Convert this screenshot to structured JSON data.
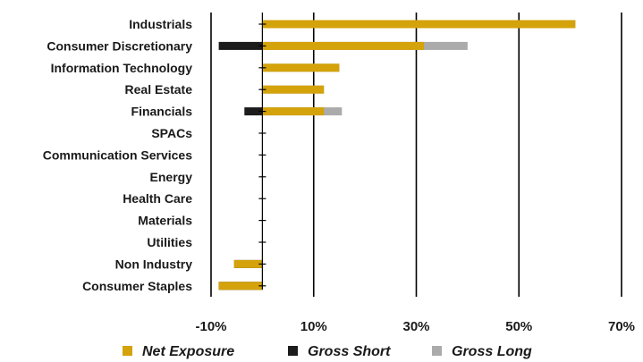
{
  "chart_data": {
    "type": "bar",
    "orientation": "horizontal",
    "title": "",
    "xlabel": "",
    "ylabel": "",
    "xlim": [
      -10,
      70
    ],
    "x_ticks": [
      "-10%",
      "10%",
      "30%",
      "50%",
      "70%"
    ],
    "x_tick_values": [
      -10,
      10,
      30,
      50,
      70
    ],
    "gridlines": "vertical",
    "legend_position": "bottom",
    "categories": [
      "Industrials",
      "Consumer Discretionary",
      "Information Technology",
      "Real Estate",
      "Financials",
      "SPACs",
      "Communication Services",
      "Energy",
      "Health Care",
      "Materials",
      "Utilities",
      "Non Industry",
      "Consumer Staples"
    ],
    "series": [
      {
        "name": "Net Exposure",
        "color": "#D4A20A",
        "values": [
          61,
          31.5,
          15,
          12,
          12,
          0,
          0,
          0,
          0,
          0,
          0,
          -5.5,
          -8.5
        ]
      },
      {
        "name": "Gross Short",
        "color": "#1c1c1c",
        "values": [
          0,
          -8.5,
          0,
          0,
          -3.5,
          0,
          0,
          0,
          0,
          0,
          0,
          -5.5,
          -8.5
        ]
      },
      {
        "name": "Gross Long",
        "color": "#ABABAB",
        "values": [
          61,
          40,
          15,
          12,
          15.5,
          0,
          0,
          0,
          0,
          0,
          0,
          0,
          0
        ]
      }
    ]
  }
}
